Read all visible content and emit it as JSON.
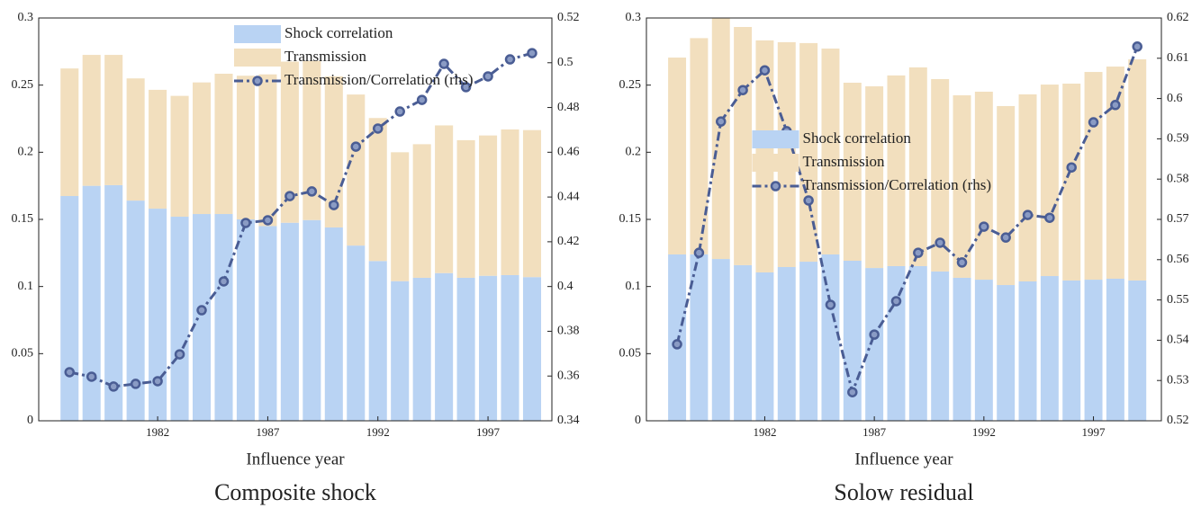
{
  "chart_data": [
    {
      "type": "bar",
      "stacked": true,
      "title": "Composite shock",
      "xlabel": "Influence year",
      "x": [
        1978,
        1979,
        1980,
        1981,
        1982,
        1983,
        1984,
        1985,
        1986,
        1987,
        1988,
        1989,
        1990,
        1991,
        1992,
        1993,
        1994,
        1995,
        1996,
        1997,
        1998,
        1999
      ],
      "xlim": [
        1976.6,
        1999.9
      ],
      "xticks": [
        1982,
        1987,
        1992,
        1997
      ],
      "ylim": [
        0,
        0.3
      ],
      "yticks": [
        0,
        0.05,
        0.1,
        0.15,
        0.2,
        0.25,
        0.3
      ],
      "y2lim": [
        0.34,
        0.52
      ],
      "y2ticks": [
        0.34,
        0.36,
        0.38,
        0.4,
        0.42,
        0.44,
        0.46,
        0.48,
        0.5,
        0.52
      ],
      "legend": "upper right",
      "series": [
        {
          "name": "Shock correlation",
          "type": "bar",
          "color": "#b9d3f3",
          "values": [
            0.1674,
            0.175,
            0.1755,
            0.164,
            0.158,
            0.152,
            0.154,
            0.154,
            0.15,
            0.145,
            0.1475,
            0.1495,
            0.144,
            0.1305,
            0.119,
            0.104,
            0.1065,
            0.11,
            0.1065,
            0.108,
            0.1085,
            0.107
          ]
        },
        {
          "name": "Transmission",
          "type": "bar",
          "color": "#f2dfbe",
          "values": [
            0.095,
            0.0975,
            0.097,
            0.091,
            0.0885,
            0.09,
            0.098,
            0.1045,
            0.107,
            0.113,
            0.12,
            0.1185,
            0.1125,
            0.1125,
            0.1065,
            0.096,
            0.0995,
            0.11,
            0.1025,
            0.1045,
            0.1085,
            0.1095
          ]
        },
        {
          "name": "Transmission/Correlation (rhs)",
          "type": "line",
          "axis": "y2",
          "color": "#4a5d94",
          "values": [
            0.3617,
            0.3597,
            0.3553,
            0.3565,
            0.3577,
            0.3697,
            0.3894,
            0.4023,
            0.4284,
            0.4296,
            0.4404,
            0.4425,
            0.4364,
            0.4625,
            0.4706,
            0.4782,
            0.4834,
            0.4995,
            0.4891,
            0.4939,
            0.5015,
            0.5043
          ]
        }
      ]
    },
    {
      "type": "bar",
      "stacked": true,
      "title": "Solow residual",
      "xlabel": "Influence year",
      "x": [
        1978,
        1979,
        1980,
        1981,
        1982,
        1983,
        1984,
        1985,
        1986,
        1987,
        1988,
        1989,
        1990,
        1991,
        1992,
        1993,
        1994,
        1995,
        1996,
        1997,
        1998,
        1999
      ],
      "xlim": [
        1976.6,
        2000.1
      ],
      "xticks": [
        1982,
        1987,
        1992,
        1997
      ],
      "ylim": [
        0,
        0.3
      ],
      "yticks": [
        0,
        0.05,
        0.1,
        0.15,
        0.2,
        0.25,
        0.3
      ],
      "y2lim": [
        0.52,
        0.62
      ],
      "y2ticks": [
        0.52,
        0.53,
        0.54,
        0.55,
        0.56,
        0.57,
        0.58,
        0.59,
        0.6,
        0.61,
        0.62
      ],
      "legend": "center",
      "series": [
        {
          "name": "Shock correlation",
          "type": "bar",
          "color": "#b9d3f3",
          "values": [
            0.1239,
            0.124,
            0.1205,
            0.1159,
            0.1105,
            0.1145,
            0.1185,
            0.1239,
            0.1192,
            0.1138,
            0.1152,
            0.1152,
            0.1112,
            0.1065,
            0.1051,
            0.1011,
            0.1038,
            0.1078,
            0.1045,
            0.1051,
            0.1058,
            0.1045
          ]
        },
        {
          "name": "Transmission",
          "type": "bar",
          "color": "#f2dfbe",
          "values": [
            0.1466,
            0.161,
            0.1795,
            0.1774,
            0.1728,
            0.1675,
            0.1628,
            0.1533,
            0.1326,
            0.1353,
            0.142,
            0.148,
            0.1433,
            0.1359,
            0.14,
            0.1333,
            0.1393,
            0.1426,
            0.1466,
            0.1547,
            0.158,
            0.1647
          ]
        },
        {
          "name": "Transmission/Correlation (rhs)",
          "type": "line",
          "axis": "y2",
          "color": "#4a5d94",
          "values": [
            0.539,
            0.5617,
            0.5943,
            0.6021,
            0.607,
            0.5919,
            0.5747,
            0.5488,
            0.5271,
            0.5414,
            0.5497,
            0.5617,
            0.5642,
            0.5593,
            0.5682,
            0.5655,
            0.5711,
            0.5704,
            0.5829,
            0.5941,
            0.5984,
            0.6129
          ]
        }
      ]
    }
  ]
}
